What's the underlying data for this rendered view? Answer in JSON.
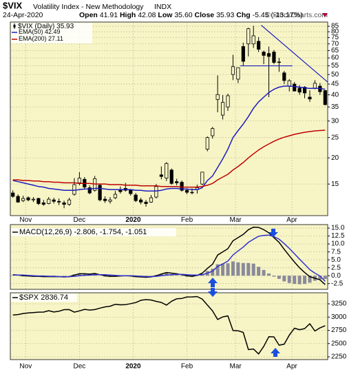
{
  "chart_data": [
    {
      "type": "candlestick",
      "title": "$VIX",
      "subtitle": "Volatility Index - New Methodology",
      "exchange": "INDX",
      "date": "24-Apr-2020",
      "credit": "© StockCharts.com",
      "quote_labels": [
        "Open",
        "High",
        "Low",
        "Close",
        "Chg"
      ],
      "quote": {
        "open": 41.91,
        "high": 42.08,
        "low": {
          "value": 35.6,
          "label": "35.60"
        },
        "close": 35.93,
        "change": -5.45,
        "change_pct": {
          "value": -13.17,
          "label": "(-13.17%)"
        }
      },
      "name": "$VIX (Daily)",
      "color": "#000000",
      "background": "#f7f5c6",
      "categories": [
        null,
        null,
        null,
        null,
        null,
        null,
        null,
        null,
        null,
        null,
        null,
        null,
        null,
        null,
        null,
        null,
        null,
        null,
        null,
        null,
        null,
        null,
        null,
        null,
        null,
        null,
        null,
        null,
        null,
        null,
        null,
        null,
        null,
        null,
        null,
        null,
        null,
        null,
        null,
        null,
        null,
        null,
        null,
        null,
        null,
        null,
        null,
        null,
        null,
        null,
        null,
        null,
        null,
        null,
        null,
        null,
        null,
        null,
        null,
        null,
        null,
        null
      ],
      "candles": [
        [
          13.6,
          14.0,
          12.9,
          13.1
        ],
        [
          13.1,
          13.4,
          12.2,
          12.3
        ],
        [
          12.5,
          13.2,
          12.3,
          12.8
        ],
        [
          12.9,
          13.1,
          12.4,
          12.6
        ],
        [
          12.6,
          13.0,
          12.3,
          12.7
        ],
        [
          12.8,
          12.9,
          11.9,
          12.1
        ],
        [
          12.2,
          12.6,
          11.8,
          12.0
        ],
        [
          12.1,
          13.0,
          12.0,
          12.7
        ],
        [
          12.6,
          12.9,
          12.1,
          12.4
        ],
        [
          12.4,
          12.8,
          11.9,
          12.3
        ],
        [
          12.2,
          12.5,
          11.5,
          12.0
        ],
        [
          12.0,
          12.9,
          11.8,
          12.6
        ],
        [
          13.4,
          16.0,
          13.2,
          14.9
        ],
        [
          15.2,
          17.1,
          14.8,
          16.0
        ],
        [
          15.8,
          16.2,
          14.1,
          14.5
        ],
        [
          14.4,
          14.8,
          13.4,
          13.6
        ],
        [
          14.0,
          16.4,
          13.8,
          15.9
        ],
        [
          14.8,
          15.0,
          12.4,
          12.6
        ],
        [
          12.7,
          13.1,
          12.2,
          12.5
        ],
        [
          12.4,
          13.0,
          12.1,
          12.6
        ],
        [
          12.9,
          13.9,
          12.7,
          13.4
        ],
        [
          14.1,
          14.6,
          13.5,
          13.8
        ],
        [
          14.3,
          15.2,
          13.8,
          14.0
        ],
        [
          14.0,
          14.2,
          13.2,
          13.5
        ],
        [
          13.3,
          13.6,
          12.3,
          12.5
        ],
        [
          12.6,
          12.9,
          12.0,
          12.3
        ],
        [
          12.3,
          12.6,
          11.7,
          12.1
        ],
        [
          12.3,
          13.3,
          12.2,
          12.9
        ],
        [
          13.0,
          15.0,
          12.8,
          14.6
        ],
        [
          16.6,
          18.2,
          15.8,
          16.3
        ],
        [
          16.0,
          19.1,
          15.5,
          18.8
        ],
        [
          17.5,
          17.8,
          14.9,
          15.1
        ],
        [
          15.4,
          15.9,
          14.8,
          15.2
        ],
        [
          15.3,
          15.6,
          13.8,
          14.0
        ],
        [
          14.0,
          14.3,
          13.4,
          13.7
        ],
        [
          13.7,
          14.3,
          13.4,
          13.7
        ],
        [
          14.1,
          14.9,
          13.5,
          14.4
        ],
        [
          15.0,
          17.1,
          14.8,
          17.1
        ],
        [
          22.0,
          25.3,
          21.5,
          25.0
        ],
        [
          25.5,
          28.1,
          24.7,
          27.6
        ],
        [
          38.0,
          49.5,
          33.0,
          40.1
        ],
        [
          32.0,
          39.9,
          30.5,
          36.8
        ],
        [
          35.0,
          40.5,
          33.5,
          39.6
        ],
        [
          50.0,
          62.1,
          47.0,
          54.5
        ],
        [
          47.5,
          54.0,
          45.5,
          53.9
        ],
        [
          68.0,
          71.0,
          55.0,
          57.8
        ],
        [
          70.0,
          83.6,
          61.0,
          82.7
        ],
        [
          70.0,
          85.5,
          67.0,
          76.5
        ],
        [
          72.0,
          75.5,
          64.0,
          66.0
        ],
        [
          64.0,
          65.0,
          56.0,
          61.7
        ],
        [
          63.0,
          68.0,
          39.0,
          61.0
        ],
        [
          64.0,
          65.5,
          56.0,
          57.1
        ],
        [
          57.4,
          60.0,
          51.5,
          57.1
        ],
        [
          50.9,
          52.0,
          45.0,
          46.8
        ],
        [
          44.0,
          47.5,
          41.5,
          46.7
        ],
        [
          45.0,
          46.0,
          41.5,
          41.7
        ],
        [
          43.0,
          44.5,
          40.0,
          41.2
        ],
        [
          43.5,
          44.0,
          38.5,
          40.8
        ],
        [
          39.0,
          42.0,
          37.0,
          38.2
        ],
        [
          43.0,
          47.0,
          42.5,
          45.4
        ],
        [
          44.0,
          45.5,
          40.0,
          41.4
        ],
        [
          41.91,
          42.08,
          35.6,
          35.93
        ]
      ],
      "series": [
        {
          "name": "EMA(50)",
          "color": "#1c1cc0",
          "values": [
            15.6,
            15.4,
            15.2,
            15.0,
            14.8,
            14.6,
            14.5,
            14.3,
            14.2,
            14.1,
            14.0,
            14.0,
            14.0,
            14.1,
            14.2,
            14.2,
            14.3,
            14.3,
            14.2,
            14.1,
            14.1,
            14.1,
            14.1,
            14.1,
            14.0,
            14.0,
            13.9,
            13.9,
            13.9,
            14.0,
            14.2,
            14.3,
            14.3,
            14.2,
            14.2,
            14.1,
            14.1,
            14.4,
            15.6,
            16.4,
            18.0,
            19.8,
            22.0,
            25.0,
            27.0,
            29.0,
            31.5,
            34.5,
            37.0,
            39.0,
            41.0,
            42.5,
            43.5,
            44.0,
            44.0,
            43.8,
            43.5,
            43.2,
            42.9,
            43.0,
            42.9,
            42.49
          ]
        },
        {
          "name": "EMA(200)",
          "color": "#c00000",
          "values": [
            15.7,
            15.7,
            15.6,
            15.6,
            15.5,
            15.5,
            15.4,
            15.4,
            15.3,
            15.3,
            15.2,
            15.2,
            15.2,
            15.1,
            15.1,
            15.1,
            15.0,
            15.0,
            15.0,
            14.9,
            14.9,
            14.9,
            14.8,
            14.8,
            14.8,
            14.7,
            14.7,
            14.7,
            14.7,
            14.6,
            14.6,
            14.6,
            14.6,
            14.5,
            14.5,
            14.5,
            14.5,
            14.6,
            14.8,
            15.1,
            15.7,
            16.2,
            16.7,
            17.5,
            18.2,
            19.0,
            20.0,
            20.9,
            21.8,
            22.6,
            23.3,
            24.0,
            24.6,
            25.1,
            25.5,
            25.9,
            26.2,
            26.5,
            26.7,
            26.9,
            27.0,
            27.11
          ]
        }
      ],
      "trendlines": [
        {
          "color": "#1c1cc0",
          "x": [
            48.5,
            61.5
          ],
          "y": [
            86,
            46
          ]
        },
        {
          "color": "#1c1cc0",
          "x": [
            44.4,
            54.6
          ],
          "y": [
            55,
            55
          ]
        }
      ],
      "log_scale": true,
      "grid": true,
      "ylim": [
        10.6,
        89
      ],
      "yticks": [
        85,
        80,
        75,
        70,
        65,
        60,
        55,
        50,
        45,
        40,
        35,
        30,
        25,
        20,
        15
      ],
      "xticks": [
        {
          "value": 2.5,
          "label": "Nov"
        },
        {
          "value": 13,
          "label": "Dec"
        },
        {
          "value": 23.5,
          "label": "2020"
        },
        {
          "value": 34,
          "label": "Feb"
        },
        {
          "value": 43.5,
          "label": "Mar"
        },
        {
          "value": 54.5,
          "label": "Apr"
        }
      ]
    },
    {
      "type": "line",
      "title": "MACD(12,26,9)",
      "background": "#f7f5c6",
      "grid": true,
      "series": [
        {
          "color": "#000000",
          "values": [
            0.3,
            0.2,
            0.0,
            -0.1,
            -0.2,
            -0.2,
            -0.3,
            -0.3,
            -0.3,
            -0.3,
            -0.4,
            -0.3,
            0.2,
            0.6,
            0.6,
            0.5,
            0.7,
            0.3,
            0.0,
            -0.2,
            -0.2,
            -0.1,
            0.0,
            -0.1,
            -0.3,
            -0.4,
            -0.5,
            -0.4,
            0.0,
            0.5,
            1.0,
            0.8,
            0.6,
            0.3,
            0.0,
            -0.2,
            0.1,
            0.8,
            2.3,
            3.6,
            6.5,
            7.5,
            8.5,
            11.0,
            12.0,
            13.0,
            14.5,
            15.3,
            15.2,
            14.5,
            13.5,
            12.0,
            10.5,
            8.3,
            6.3,
            4.3,
            2.5,
            1.0,
            -0.3,
            -0.8,
            -1.3,
            -2.806
          ]
        },
        {
          "color": "#3030d0",
          "values": [
            0.2,
            0.2,
            0.2,
            0.1,
            0.0,
            -0.1,
            -0.1,
            -0.2,
            -0.2,
            -0.3,
            -0.3,
            -0.3,
            -0.2,
            0.0,
            0.1,
            0.2,
            0.3,
            0.3,
            0.3,
            0.2,
            0.1,
            0.0,
            0.0,
            0.0,
            -0.1,
            -0.2,
            -0.3,
            -0.3,
            -0.2,
            0.0,
            0.2,
            0.3,
            0.4,
            0.4,
            0.3,
            0.2,
            0.2,
            0.3,
            0.8,
            1.4,
            2.9,
            3.7,
            4.6,
            6.5,
            7.8,
            9.0,
            10.5,
            11.5,
            12.4,
            12.7,
            12.8,
            12.3,
            11.5,
            10.1,
            8.6,
            6.9,
            5.2,
            3.6,
            1.9,
            0.8,
            -0.1,
            -1.754
          ]
        }
      ],
      "histogram": {
        "color": "#8a8a99",
        "values": [
          0.1,
          0.0,
          -0.2,
          -0.2,
          -0.2,
          -0.1,
          -0.2,
          -0.1,
          -0.1,
          0.0,
          -0.1,
          0.0,
          0.4,
          0.6,
          0.5,
          0.3,
          0.4,
          0.0,
          -0.3,
          -0.4,
          -0.3,
          -0.1,
          0.0,
          -0.1,
          -0.2,
          -0.2,
          -0.2,
          -0.1,
          0.2,
          0.5,
          0.8,
          0.5,
          0.2,
          -0.1,
          -0.3,
          -0.4,
          -0.1,
          0.5,
          1.5,
          2.2,
          3.6,
          3.8,
          3.9,
          4.5,
          4.2,
          4.0,
          4.0,
          3.8,
          2.8,
          1.8,
          0.7,
          -0.3,
          -1.0,
          -1.8,
          -2.3,
          -2.6,
          -2.7,
          -2.6,
          -2.2,
          -1.6,
          -1.2,
          -1.051
        ]
      },
      "ylim": [
        -4.3,
        16.1
      ],
      "yticks": [
        {
          "value": 15,
          "label": "15.0"
        },
        12.5,
        {
          "value": 10,
          "label": "10.0"
        },
        7.5,
        {
          "value": 5,
          "label": "5.0"
        },
        2.5,
        {
          "value": 0,
          "label": "0.0"
        },
        -2.5
      ]
    },
    {
      "type": "line",
      "title": "$SPX",
      "background": "#f7f5c6",
      "grid": true,
      "series": [
        {
          "color": "#000000",
          "values": [
            3040,
            3047,
            3067,
            3078,
            3085,
            3093,
            3094,
            3120,
            3096,
            3110,
            3140,
            3141,
            3093,
            3117,
            3145,
            3132,
            3141,
            3168,
            3192,
            3205,
            3240,
            3231,
            3235,
            3253,
            3274,
            3316,
            3329,
            3321,
            3295,
            3276,
            3225,
            3298,
            3345,
            3352,
            3379,
            3380,
            3386,
            3338,
            3225,
            3116,
            2954,
            3003,
            3023,
            2746,
            2741,
            2711,
            2386,
            2398,
            2305,
            2447,
            2630,
            2627,
            2470,
            2489,
            2659,
            2790,
            2762,
            2783,
            2875,
            2737,
            2797,
            2836.74
          ]
        }
      ],
      "ylim": [
        2198,
        3458
      ],
      "yticks": [
        3250,
        3000,
        2750,
        2500,
        2250
      ]
    }
  ]
}
